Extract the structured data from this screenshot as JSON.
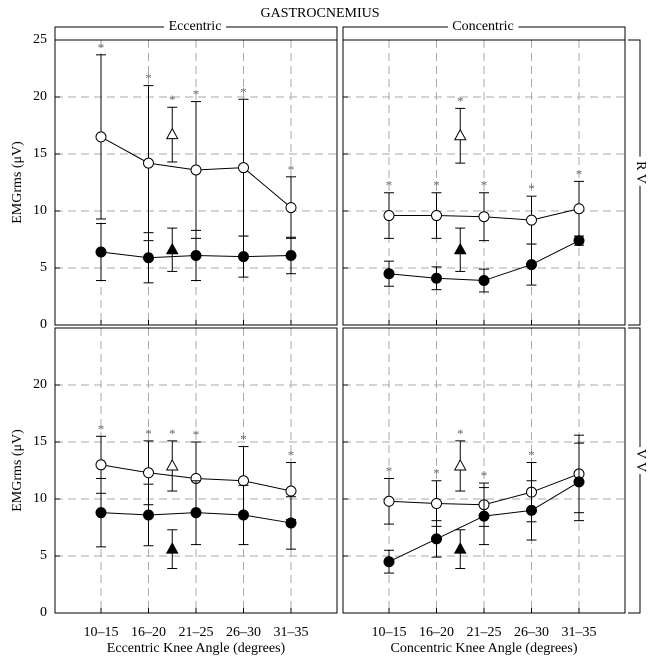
{
  "title": "GASTROCNEMIUS",
  "chart_data": [
    {
      "type": "line",
      "column_label": "Eccentric",
      "ylabel": "EMGrms (μV)",
      "categories": [
        null,
        null,
        null,
        null,
        null
      ],
      "ylim": [
        0,
        25
      ],
      "yticks": [
        0,
        5,
        10,
        15,
        20,
        25
      ],
      "ytick_labels": true,
      "grid": true,
      "series": [
        {
          "color": "#ffffff",
          "values": [
            16.5,
            14.2,
            13.6,
            13.8,
            10.3
          ],
          "errors": [
            7.2,
            6.8,
            6.0,
            6.0,
            2.7
          ],
          "annotations": [
            "*",
            "*",
            "*",
            "*",
            "*"
          ]
        },
        {
          "color": "#000000",
          "values": [
            6.4,
            5.9,
            6.1,
            6.0,
            6.1
          ],
          "errors": [
            2.5,
            2.2,
            2.2,
            1.8,
            1.6
          ]
        }
      ],
      "reference": [
        {
          "color": "#ffffff",
          "value": 16.7,
          "error": 2.4,
          "annotation": "*"
        },
        {
          "color": "#000000",
          "value": 6.6,
          "error": 1.9
        }
      ]
    },
    {
      "type": "line",
      "column_label": "Concentric",
      "row_label": "R V",
      "categories": [
        null,
        null,
        null,
        null,
        null
      ],
      "ylim": [
        0,
        25
      ],
      "yticks": [
        0,
        5,
        10,
        15,
        20,
        25
      ],
      "ytick_labels": false,
      "grid": true,
      "series": [
        {
          "color": "#ffffff",
          "values": [
            9.6,
            9.6,
            9.5,
            9.2,
            10.2
          ],
          "errors": [
            2.0,
            2.0,
            2.1,
            2.1,
            2.4
          ],
          "annotations": [
            "*",
            "*",
            "*",
            "*",
            "*"
          ]
        },
        {
          "color": "#000000",
          "values": [
            4.5,
            4.1,
            3.9,
            5.3,
            7.4
          ],
          "errors": [
            1.1,
            1.0,
            1.0,
            1.8,
            0.4
          ]
        }
      ],
      "reference": [
        {
          "color": "#ffffff",
          "value": 16.6,
          "error": 2.4,
          "annotation": "*"
        },
        {
          "color": "#000000",
          "value": 6.6,
          "error": 1.9
        }
      ]
    },
    {
      "type": "line",
      "ylabel": "EMGrms (μV)",
      "xlabel": "Eccentric Knee Angle (degrees)",
      "categories": [
        "10–15",
        "16–20",
        "21–25",
        "26–30",
        "31–35"
      ],
      "ylim": [
        0,
        25
      ],
      "yticks": [
        0,
        5,
        10,
        15,
        20
      ],
      "ytick_labels": true,
      "grid": true,
      "series": [
        {
          "color": "#ffffff",
          "values": [
            13.0,
            12.3,
            11.8,
            11.6,
            10.7
          ],
          "errors": [
            2.5,
            2.8,
            3.2,
            3.0,
            2.5
          ],
          "annotations": [
            "*",
            "*",
            "*",
            "*",
            "*"
          ]
        },
        {
          "color": "#000000",
          "values": [
            8.8,
            8.6,
            8.8,
            8.6,
            7.9
          ],
          "errors": [
            3.0,
            2.7,
            2.8,
            2.6,
            2.3
          ]
        }
      ],
      "reference": [
        {
          "color": "#ffffff",
          "value": 12.9,
          "error": 2.2,
          "annotation": "*"
        },
        {
          "color": "#000000",
          "value": 5.6,
          "error": 1.7
        }
      ]
    },
    {
      "type": "line",
      "row_label": "V V",
      "xlabel": "Concentric Knee Angle (degrees)",
      "categories": [
        "10–15",
        "16–20",
        "21–25",
        "26–30",
        "31–35"
      ],
      "ylim": [
        0,
        25
      ],
      "yticks": [
        0,
        5,
        10,
        15,
        20
      ],
      "ytick_labels": false,
      "grid": true,
      "series": [
        {
          "color": "#ffffff",
          "values": [
            9.8,
            9.6,
            9.5,
            10.6,
            12.2
          ],
          "errors": [
            2.0,
            2.0,
            1.9,
            2.6,
            3.4
          ],
          "annotations": [
            "*",
            "*",
            "*",
            "*",
            null
          ]
        },
        {
          "color": "#000000",
          "values": [
            4.5,
            6.5,
            8.5,
            9.0,
            11.5
          ],
          "errors": [
            1.0,
            1.6,
            2.5,
            2.6,
            3.4
          ]
        }
      ],
      "reference": [
        {
          "color": "#ffffff",
          "value": 12.9,
          "error": 2.2,
          "annotation": "*"
        },
        {
          "color": "#000000",
          "value": 5.6,
          "error": 1.7
        }
      ]
    }
  ]
}
